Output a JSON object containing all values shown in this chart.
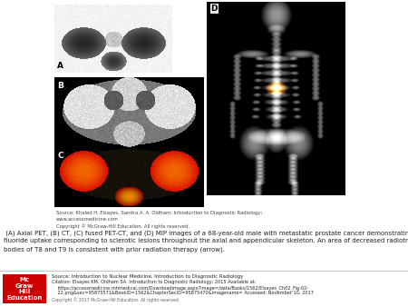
{
  "background_color": "#ffffff",
  "figure_width": 4.5,
  "figure_height": 3.38,
  "dpi": 100,
  "source_text": "Source: Khaled H. Elsayes, Sandra A. A. Oldham: Introduction to Diagnostic Radiology;\nwww.accessmedicine.com\nCopyright © McGraw-Hill Education. All rights reserved.",
  "source_fontsize": 3.8,
  "caption_text": " (A) Axial PET, (B) CT, (C) fused PET-CT, and (D) MIP images of a 68-year-old male with metastatic prostate cancer demonstrating diffuse sodium\nfluoride uptake corresponding to sclerotic lesions throughout the axial and appendicular skeleton. An area of decreased radiotracer activity in the vertebral\nbodies of T8 and T9 is consistent with prior radiation therapy (arrow).",
  "caption_fontsize": 5.0,
  "footer_text_line1": "Source: Introduction to Nuclear Medicine, Introduction to Diagnostic Radiology",
  "footer_text_line2": "Citation: Elsayes KM, Oldham SA. Introduction to Diagnostic Radiology; 2015 Available at:",
  "footer_text_line3": "    https://accessmedicine.mhmedical.com/Downloadimage.aspx?image=/data/Books/1562/Elsayes_Ch02_Fig-02-",
  "footer_text_line4": "    22.png&sec=95875571&BookID=1562&ChapterSecID=95875470&imagename= Accessed: November 10, 2017",
  "footer_text_line5": "Copyright © 2017 McGraw-Hill Education. All rights reserved.",
  "footer_fontsize": 3.6,
  "label_fontsize": 6.5,
  "mc_graw_red": "#cc0000",
  "mc_graw_text": "Mc\nGraw\nHill\nEducation",
  "mc_graw_fontsize": 5.0
}
